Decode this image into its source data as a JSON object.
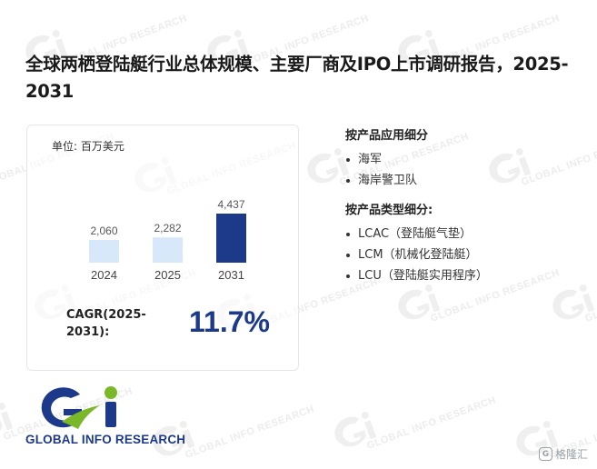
{
  "title": "全球两栖登陆艇行业总体规模、主要厂商及IPO上市调研报告，2025-2031",
  "chart": {
    "unit_label": "单位: 百万美元",
    "bar_color_light": "#d6e8fa",
    "bar_color_dark": "#1d3a8a"
  },
  "chart_data": {
    "type": "bar",
    "categories": [
      "2024",
      "2025",
      "2031"
    ],
    "values": [
      2060,
      2282,
      4437
    ],
    "value_labels": [
      "2,060",
      "2,282",
      "4,437"
    ],
    "highlight_index": 2,
    "ylabel": "单位: 百万美元"
  },
  "cagr": {
    "label_line1": "CAGR(2025-",
    "label_line2": "2031):",
    "value": "11.7%"
  },
  "segments": {
    "application_title": "按产品应用细分",
    "application_items": [
      "海军",
      "海岸警卫队"
    ],
    "type_title": "按产品类型细分:",
    "type_items": [
      "LCAC（登陆艇气垫）",
      "LCM（机械化登陆艇）",
      "LCU（登陆艇实用程序）"
    ]
  },
  "logo": {
    "text": "GLOBAL INFO RESEARCH",
    "colors": {
      "blue": "#1d3a8a",
      "green": "#7ab828"
    }
  },
  "watermark": {
    "text": "GLOBAL INFO RESEARCH"
  },
  "corner_badge": {
    "icon": "gelonghui-badge-icon",
    "text": "格隆汇"
  }
}
